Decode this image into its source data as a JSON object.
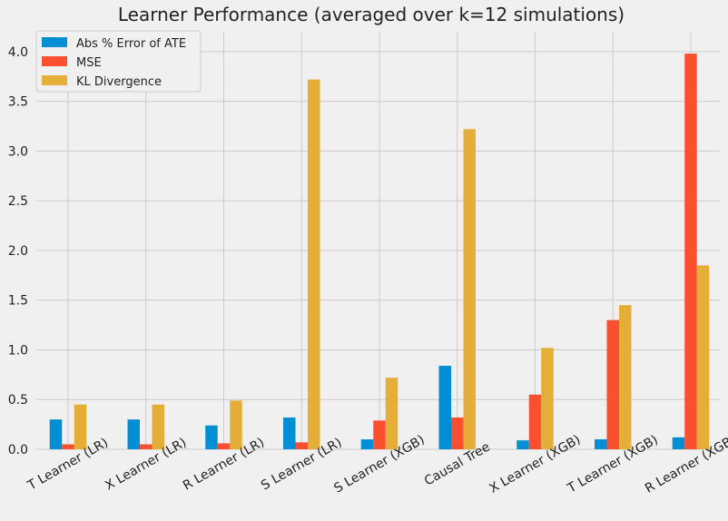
{
  "chart_data": {
    "type": "bar",
    "title": "Learner Performance (averaged over k=12 simulations)",
    "xlabel": "",
    "ylabel": "",
    "ylim": [
      0,
      4.2
    ],
    "yticks": [
      "0.0",
      "0.5",
      "1.0",
      "1.5",
      "2.0",
      "2.5",
      "3.0",
      "3.5",
      "4.0"
    ],
    "grid": true,
    "legend_position": "top-left",
    "categories": [
      "T Learner (LR)",
      "X Learner (LR)",
      "R Learner (LR)",
      "S Learner (LR)",
      "S Learner (XGB)",
      "Causal Tree",
      "X Learner (XGB)",
      "T Learner (XGB)",
      "R Learner (XGB)"
    ],
    "series": [
      {
        "name": "Abs % Error of ATE",
        "color": "#008fd5",
        "values": [
          0.3,
          0.3,
          0.24,
          0.32,
          0.1,
          0.84,
          0.09,
          0.1,
          0.12
        ]
      },
      {
        "name": "MSE",
        "color": "#fc4f30",
        "values": [
          0.05,
          0.05,
          0.06,
          0.07,
          0.29,
          0.32,
          0.55,
          1.3,
          3.98
        ]
      },
      {
        "name": "KL Divergence",
        "color": "#e5ae38",
        "values": [
          0.45,
          0.45,
          0.49,
          3.72,
          0.72,
          3.22,
          1.02,
          1.45,
          1.85
        ]
      }
    ]
  }
}
